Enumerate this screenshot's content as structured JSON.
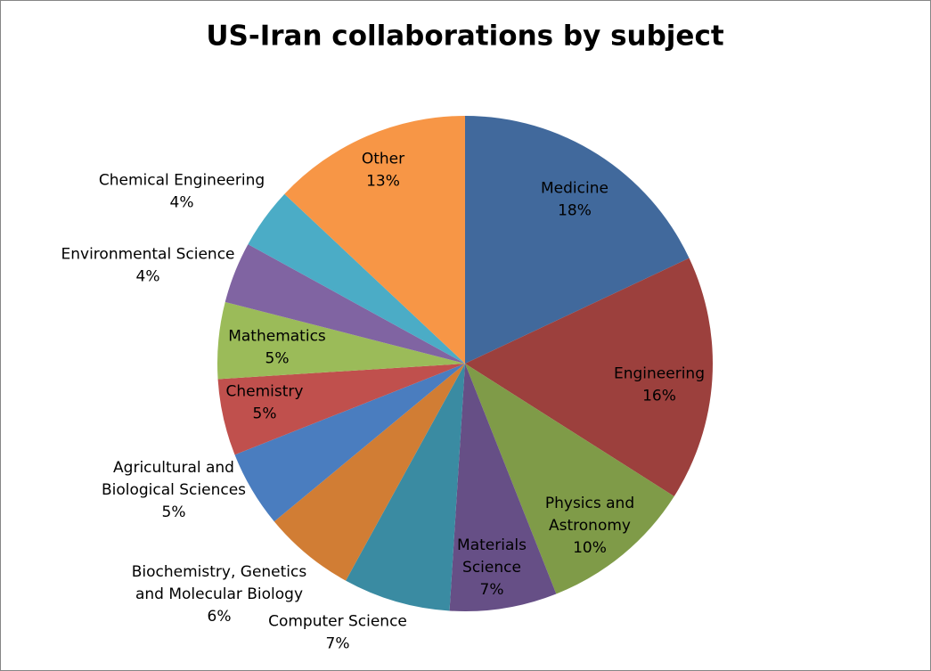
{
  "chart_data": {
    "type": "pie",
    "title": "US-Iran collaborations by subject",
    "categories": [
      "Medicine",
      "Engineering",
      "Physics and Astronomy",
      "Materials Science",
      "Computer Science",
      "Biochemistry, Genetics and Molecular Biology",
      "Agricultural and Biological Sciences",
      "Chemistry",
      "Mathematics",
      "Environmental Science",
      "Chemical Engineering",
      "Other"
    ],
    "values": [
      18,
      16,
      10,
      7,
      7,
      6,
      5,
      5,
      5,
      4,
      4,
      13
    ],
    "value_labels": [
      "18%",
      "16%",
      "10%",
      "7%",
      "7%",
      "6%",
      "5%",
      "5%",
      "5%",
      "4%",
      "4%",
      "13%"
    ],
    "colors": [
      "#41699c",
      "#9c403d",
      "#7f9b48",
      "#664f86",
      "#3a8ba2",
      "#d17d34",
      "#4a7dbf",
      "#c0504d",
      "#9bbb59",
      "#8064a2",
      "#4bacc6",
      "#f79646"
    ]
  }
}
